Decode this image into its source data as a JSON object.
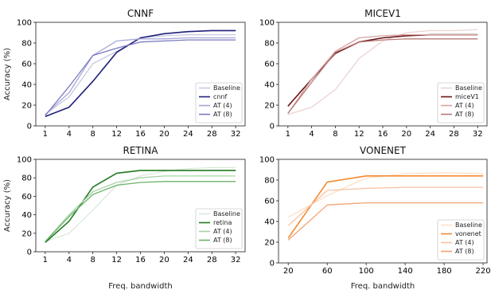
{
  "chart_data": [
    {
      "type": "line",
      "title": "CNNF",
      "xlabel": "",
      "ylabel": "Accuracy (%)",
      "x": [
        1,
        4,
        8,
        12,
        16,
        20,
        24,
        28,
        32
      ],
      "xticks": [
        1,
        4,
        8,
        12,
        16,
        20,
        24,
        28,
        32
      ],
      "xaxis": "categorical",
      "ylim": [
        0,
        100
      ],
      "yticks": [
        0,
        20,
        40,
        60,
        80,
        100
      ],
      "grid": false,
      "legend": "bottom-right",
      "series": [
        {
          "name": "Baseline",
          "color": "#c8c8e4",
          "values": [
            11,
            28,
            60,
            72,
            85,
            87,
            88,
            88,
            88
          ]
        },
        {
          "name": "cnnf",
          "color": "#1f1f7a",
          "values": [
            9,
            18,
            43,
            71,
            85,
            89,
            91,
            92,
            92
          ]
        },
        {
          "name": "AT (4)",
          "color": "#a7a7d8",
          "values": [
            11,
            32,
            68,
            82,
            84,
            84,
            85,
            85,
            85
          ]
        },
        {
          "name": "AT (8)",
          "color": "#7a7abe",
          "values": [
            10,
            38,
            68,
            75,
            81,
            82,
            83,
            83,
            83
          ]
        }
      ]
    },
    {
      "type": "line",
      "title": "MICEV1",
      "xlabel": "",
      "ylabel": "",
      "x": [
        1,
        4,
        8,
        12,
        16,
        20,
        24,
        28,
        32
      ],
      "xticks": [
        1,
        4,
        8,
        12,
        16,
        20,
        24,
        28,
        32
      ],
      "xaxis": "categorical",
      "ylim": [
        0,
        100
      ],
      "yticks": [
        0,
        20,
        40,
        60,
        80,
        100
      ],
      "grid": false,
      "legend": "bottom-right",
      "series": [
        {
          "name": "Baseline",
          "color": "#ecd2d2",
          "values": [
            11,
            18,
            35,
            65,
            82,
            90,
            92,
            92,
            93
          ]
        },
        {
          "name": "miceV1",
          "color": "#6b1515",
          "values": [
            19,
            45,
            70,
            81,
            85,
            87,
            88,
            88,
            88
          ]
        },
        {
          "name": "AT (4)",
          "color": "#d6a3a3",
          "values": [
            12,
            45,
            72,
            85,
            87,
            88,
            88,
            88,
            88
          ]
        },
        {
          "name": "AT (8)",
          "color": "#b77a7a",
          "values": [
            12,
            42,
            71,
            81,
            83,
            84,
            84,
            84,
            84
          ]
        }
      ]
    },
    {
      "type": "line",
      "title": "RETINA",
      "xlabel": "Freq. bandwidth",
      "ylabel": "Accuracy (%)",
      "x": [
        1,
        4,
        8,
        12,
        16,
        20,
        24,
        28,
        32
      ],
      "xticks": [
        1,
        4,
        8,
        12,
        16,
        20,
        24,
        28,
        32
      ],
      "xaxis": "categorical",
      "ylim": [
        0,
        100
      ],
      "yticks": [
        0,
        20,
        40,
        60,
        80,
        100
      ],
      "grid": false,
      "legend": "bottom-right",
      "series": [
        {
          "name": "Baseline",
          "color": "#d9ead9",
          "values": [
            11,
            20,
            45,
            72,
            82,
            87,
            90,
            91,
            91
          ]
        },
        {
          "name": "retina",
          "color": "#217a21",
          "values": [
            10,
            33,
            70,
            85,
            88,
            88,
            88,
            88,
            88
          ]
        },
        {
          "name": "AT (4)",
          "color": "#a8d2a8",
          "values": [
            11,
            40,
            65,
            75,
            80,
            82,
            82,
            82,
            82
          ]
        },
        {
          "name": "AT (8)",
          "color": "#6bb36b",
          "values": [
            11,
            38,
            62,
            72,
            75,
            76,
            76,
            76,
            76
          ]
        }
      ]
    },
    {
      "type": "line",
      "title": "VONENET",
      "xlabel": "Freq. bandwidth",
      "ylabel": "",
      "x": [
        20,
        60,
        100,
        140,
        180,
        220
      ],
      "xticks": [
        20,
        60,
        100,
        140,
        180,
        220
      ],
      "xaxis": "linear",
      "xlim": [
        10,
        224
      ],
      "ylim": [
        0,
        100
      ],
      "yticks": [
        0,
        20,
        40,
        60,
        80,
        100
      ],
      "grid": false,
      "legend": "bottom-right",
      "series": [
        {
          "name": "Baseline",
          "color": "#fde0c6",
          "values": [
            44,
            65,
            82,
            86,
            87,
            86
          ]
        },
        {
          "name": "vonenet",
          "color": "#f28b30",
          "values": [
            24,
            78,
            84,
            84,
            84,
            84
          ]
        },
        {
          "name": "AT (4)",
          "color": "#f9c1a2",
          "values": [
            36,
            70,
            72,
            73,
            73,
            73
          ]
        },
        {
          "name": "AT (8)",
          "color": "#f4a271",
          "values": [
            22,
            56,
            58,
            58,
            58,
            58
          ]
        }
      ]
    }
  ]
}
